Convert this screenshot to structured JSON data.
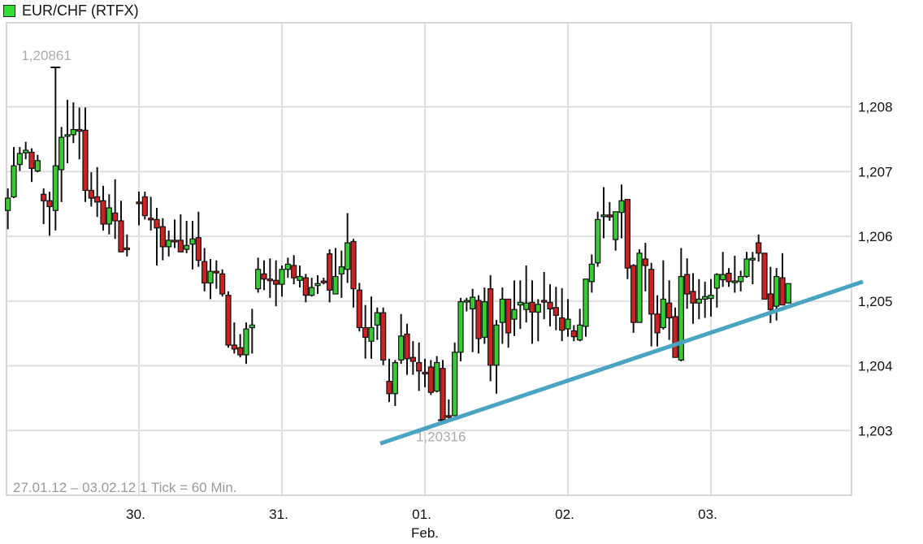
{
  "chart_data": {
    "type": "candlestick",
    "title": "EUR/CHF (RTFX)",
    "legend": {
      "label": "EUR/CHF (RTFX)",
      "color": "#33dd33",
      "placement": "top-left"
    },
    "footer": "27.01.12 – 03.02.12   1 Tick = 60 Min.",
    "colors": {
      "up": "#33cc33",
      "down": "#cc2222",
      "wick": "#111111",
      "grid": "#dddddd",
      "trendline": "#4aa3c0"
    },
    "grid": true,
    "ylim": [
      1.202,
      1.2093
    ],
    "y_ticks": [
      "1,203",
      "1,204",
      "1,205",
      "1,206",
      "1,207",
      "1,208"
    ],
    "y_tick_values": [
      1.203,
      1.204,
      1.205,
      1.206,
      1.207,
      1.208
    ],
    "x_ticks": [
      {
        "label": "30.",
        "sub": "",
        "time": "30.01 00:00"
      },
      {
        "label": "31.",
        "sub": "",
        "time": "31.01 00:00"
      },
      {
        "label": "01.",
        "sub": "Feb.",
        "time": "01.02 00:00"
      },
      {
        "label": "02.",
        "sub": "",
        "time": "02.02 00:00"
      },
      {
        "label": "03.",
        "sub": "",
        "time": "03.02 00:00"
      }
    ],
    "annotations": [
      {
        "text": "1,20861",
        "time": "27.01 10:00",
        "price": 1.20861,
        "kind": "high"
      },
      {
        "text": "1,20316",
        "time": "01.02 03:00",
        "price": 1.20316,
        "kind": "low"
      }
    ],
    "trendline": {
      "start": {
        "time": "31.01 16:30",
        "price": 1.2028
      },
      "end": {
        "time": "04.02 01:30",
        "price": 1.2053
      }
    },
    "candle_fields": [
      "time",
      "open",
      "high",
      "low",
      "close"
    ],
    "candles": [
      [
        "27.01 02:00",
        1.2064,
        1.20674,
        1.20611,
        1.20659
      ],
      [
        "27.01 03:00",
        1.20661,
        1.20738,
        1.20659,
        1.20709
      ],
      [
        "27.01 04:00",
        1.20711,
        1.20738,
        1.20701,
        1.20728
      ],
      [
        "27.01 05:00",
        1.20729,
        1.20746,
        1.20719,
        1.20733
      ],
      [
        "27.01 06:00",
        1.2073,
        1.20736,
        1.20684,
        1.20705
      ],
      [
        "27.01 07:00",
        1.20701,
        1.20726,
        1.20699,
        1.20717
      ],
      [
        "27.01 08:00",
        1.20665,
        1.20674,
        1.20619,
        1.20655
      ],
      [
        "27.01 09:00",
        1.20655,
        1.20669,
        1.20601,
        1.20646
      ],
      [
        "27.01 10:00",
        1.2064,
        1.20861,
        1.20609,
        1.20709
      ],
      [
        "27.01 11:00",
        1.20703,
        1.20769,
        1.20653,
        1.20753
      ],
      [
        "27.01 12:00",
        1.20755,
        1.20811,
        1.20713,
        1.20757
      ],
      [
        "27.01 13:00",
        1.20757,
        1.20807,
        1.20744,
        1.20765
      ],
      [
        "27.01 14:00",
        1.20765,
        1.20799,
        1.20719,
        1.20764
      ],
      [
        "27.01 15:00",
        1.20764,
        1.20799,
        1.20653,
        1.20671
      ],
      [
        "27.01 16:00",
        1.20671,
        1.20699,
        1.20646,
        1.20659
      ],
      [
        "27.01 17:00",
        1.20661,
        1.20707,
        1.2063,
        1.20653
      ],
      [
        "27.01 18:00",
        1.20655,
        1.20678,
        1.20609,
        1.20619
      ],
      [
        "27.01 19:00",
        1.20619,
        1.20665,
        1.20603,
        1.20644
      ],
      [
        "27.01 20:00",
        1.20636,
        1.20688,
        1.20596,
        1.20624
      ],
      [
        "27.01 21:00",
        1.20624,
        1.20655,
        1.20576,
        1.20576
      ],
      [
        "27.01 22:00",
        1.20582,
        1.20603,
        1.20569,
        1.20581
      ],
      [
        "30.01 00:00",
        1.20653,
        1.20669,
        1.20617,
        1.20652
      ],
      [
        "30.01 01:00",
        1.20661,
        1.20669,
        1.20626,
        1.20632
      ],
      [
        "30.01 02:00",
        1.20628,
        1.20661,
        1.20609,
        1.20627
      ],
      [
        "30.01 03:00",
        1.20626,
        1.20644,
        1.20555,
        1.20613
      ],
      [
        "30.01 04:00",
        1.20615,
        1.20628,
        1.20563,
        1.20584
      ],
      [
        "30.01 05:00",
        1.20584,
        1.20609,
        1.20569,
        1.20594
      ],
      [
        "30.01 06:00",
        1.20594,
        1.20626,
        1.20582,
        1.20593
      ],
      [
        "30.01 07:00",
        1.20594,
        1.20634,
        1.20576,
        1.20576
      ],
      [
        "30.01 08:00",
        1.2058,
        1.20624,
        1.20574,
        1.20586
      ],
      [
        "30.01 09:00",
        1.20588,
        1.20624,
        1.20549,
        1.20596
      ],
      [
        "30.01 10:00",
        1.20598,
        1.20638,
        1.20553,
        1.20563
      ],
      [
        "30.01 11:00",
        1.20561,
        1.20582,
        1.20515,
        1.20528
      ],
      [
        "30.01 12:00",
        1.20528,
        1.20565,
        1.20503,
        1.20546
      ],
      [
        "30.01 13:00",
        1.20546,
        1.20563,
        1.20519,
        1.20545
      ],
      [
        "30.01 14:00",
        1.20542,
        1.20549,
        1.20507,
        1.20511
      ],
      [
        "30.01 15:00",
        1.20509,
        1.20515,
        1.20428,
        1.20432
      ],
      [
        "30.01 16:00",
        1.20432,
        1.20467,
        1.20419,
        1.20426
      ],
      [
        "30.01 17:00",
        1.20428,
        1.20449,
        1.20413,
        1.20417
      ],
      [
        "30.01 18:00",
        1.20417,
        1.20467,
        1.20403,
        1.20457
      ],
      [
        "30.01 19:00",
        1.20459,
        1.20488,
        1.20419,
        1.20463
      ],
      [
        "30.01 20:00",
        1.20519,
        1.20567,
        1.20513,
        1.20549
      ],
      [
        "30.01 21:00",
        1.20542,
        1.20563,
        1.20517,
        1.20534
      ],
      [
        "30.01 22:00",
        1.20534,
        1.20566,
        1.20505,
        1.20533
      ],
      [
        "30.01 23:00",
        1.20532,
        1.20563,
        1.20492,
        1.20526
      ],
      [
        "31.01 00:00",
        1.20526,
        1.20555,
        1.20507,
        1.20549
      ],
      [
        "31.01 01:00",
        1.20549,
        1.20567,
        1.20536,
        1.20557
      ],
      [
        "31.01 02:00",
        1.20555,
        1.20571,
        1.20526,
        1.20536
      ],
      [
        "31.01 03:00",
        1.20532,
        1.20555,
        1.20521,
        1.20538
      ],
      [
        "31.01 04:00",
        1.20536,
        1.20542,
        1.20498,
        1.20509
      ],
      [
        "31.01 05:00",
        1.20509,
        1.20536,
        1.20507,
        1.20521
      ],
      [
        "31.01 06:00",
        1.20524,
        1.2054,
        1.20511,
        1.20527
      ],
      [
        "31.01 07:00",
        1.20531,
        1.20536,
        1.20526,
        1.2053
      ],
      [
        "31.01 08:00",
        1.20573,
        1.2058,
        1.20498,
        1.20517
      ],
      [
        "31.01 09:00",
        1.20511,
        1.20582,
        1.20511,
        1.20538
      ],
      [
        "31.01 10:00",
        1.20542,
        1.20578,
        1.20505,
        1.20553
      ],
      [
        "31.01 11:00",
        1.20549,
        1.20636,
        1.20528,
        1.2059
      ],
      [
        "31.01 12:00",
        1.20592,
        1.20596,
        1.2049,
        1.20519
      ],
      [
        "31.01 13:00",
        1.20517,
        1.20528,
        1.20453,
        1.20459
      ],
      [
        "31.01 14:00",
        1.20459,
        1.20494,
        1.20411,
        1.20444
      ],
      [
        "31.01 15:00",
        1.20438,
        1.20507,
        1.20411,
        1.20459
      ],
      [
        "31.01 16:00",
        1.20463,
        1.2049,
        1.2044,
        1.20482
      ],
      [
        "31.01 17:00",
        1.20482,
        1.2049,
        1.20401,
        1.20409
      ],
      [
        "31.01 18:00",
        1.20376,
        1.20411,
        1.20344,
        1.20357
      ],
      [
        "31.01 19:00",
        1.20357,
        1.20409,
        1.20338,
        1.20405
      ],
      [
        "31.01 20:00",
        1.20409,
        1.2048,
        1.20403,
        1.20446
      ],
      [
        "31.01 21:00",
        1.20449,
        1.20465,
        1.20386,
        1.20411
      ],
      [
        "31.01 22:00",
        1.20413,
        1.20438,
        1.20386,
        1.20407
      ],
      [
        "31.01 23:00",
        1.20405,
        1.20436,
        1.20361,
        1.20392
      ],
      [
        "01.02 00:00",
        1.2039,
        1.20411,
        1.20367,
        1.20389
      ],
      [
        "01.02 01:00",
        1.20398,
        1.20409,
        1.20355,
        1.20359
      ],
      [
        "01.02 02:00",
        1.20361,
        1.20415,
        1.20359,
        1.20405
      ],
      [
        "01.02 03:00",
        1.20396,
        1.20409,
        1.20316,
        1.20317
      ],
      [
        "01.02 04:00",
        1.20323,
        1.20348,
        1.20315,
        1.20322
      ],
      [
        "01.02 05:00",
        1.20323,
        1.20436,
        1.20323,
        1.20421
      ],
      [
        "01.02 06:00",
        1.20421,
        1.20505,
        1.20407,
        1.20499
      ],
      [
        "01.02 07:00",
        1.205,
        1.20505,
        1.20484,
        1.20501
      ],
      [
        "01.02 08:00",
        1.20488,
        1.20519,
        1.20421,
        1.20506
      ],
      [
        "01.02 09:00",
        1.20501,
        1.20509,
        1.20419,
        1.20442
      ],
      [
        "01.02 10:00",
        1.20444,
        1.20521,
        1.20434,
        1.20499
      ],
      [
        "01.02 11:00",
        1.20519,
        1.2054,
        1.20376,
        1.20401
      ],
      [
        "01.02 12:00",
        1.20401,
        1.20471,
        1.20357,
        1.20463
      ],
      [
        "01.02 13:00",
        1.20467,
        1.20521,
        1.20434,
        1.20503
      ],
      [
        "01.02 14:00",
        1.20503,
        1.20503,
        1.20428,
        1.20451
      ],
      [
        "01.02 15:00",
        1.20472,
        1.20532,
        1.20446,
        1.20487
      ],
      [
        "01.02 16:00",
        1.20494,
        1.20532,
        1.20457,
        1.20498
      ],
      [
        "01.02 17:00",
        1.20487,
        1.20555,
        1.20467,
        1.20497
      ],
      [
        "01.02 18:00",
        1.20498,
        1.20532,
        1.20434,
        1.20483
      ],
      [
        "01.02 19:00",
        1.20483,
        1.20503,
        1.20438,
        1.20495
      ],
      [
        "01.02 20:00",
        1.20501,
        1.20545,
        1.20472,
        1.205
      ],
      [
        "01.02 21:00",
        1.20498,
        1.20526,
        1.20461,
        1.20488
      ],
      [
        "01.02 22:00",
        1.2049,
        1.20522,
        1.20455,
        1.20478
      ],
      [
        "01.02 23:00",
        1.20474,
        1.2052,
        1.20438,
        1.20455
      ],
      [
        "02.02 00:00",
        1.20457,
        1.20503,
        1.20445,
        1.20472
      ],
      [
        "02.02 01:00",
        1.20454,
        1.20463,
        1.20438,
        1.20445
      ],
      [
        "02.02 02:00",
        1.2044,
        1.20488,
        1.20438,
        1.20463
      ],
      [
        "02.02 03:00",
        1.20461,
        1.20534,
        1.20445,
        1.20534
      ],
      [
        "02.02 04:00",
        1.2053,
        1.20572,
        1.20513,
        1.20557
      ],
      [
        "02.02 05:00",
        1.20559,
        1.20638,
        1.20553,
        1.20626
      ],
      [
        "02.02 06:00",
        1.20632,
        1.20676,
        1.20597,
        1.20633
      ],
      [
        "02.02 07:00",
        1.20633,
        1.20653,
        1.20624,
        1.2063
      ],
      [
        "02.02 08:00",
        1.20595,
        1.20638,
        1.20578,
        1.20638
      ],
      [
        "02.02 09:00",
        1.20637,
        1.2068,
        1.20597,
        1.20655
      ],
      [
        "02.02 10:00",
        1.20657,
        1.20657,
        1.20534,
        1.20551
      ],
      [
        "02.02 11:00",
        1.20555,
        1.20557,
        1.20451,
        1.20467
      ],
      [
        "02.02 12:00",
        1.20467,
        1.2058,
        1.20467,
        1.20574
      ],
      [
        "02.02 13:00",
        1.20565,
        1.2059,
        1.20515,
        1.20555
      ],
      [
        "02.02 14:00",
        1.20549,
        1.20559,
        1.2043,
        1.2048
      ],
      [
        "02.02 15:00",
        1.2048,
        1.20509,
        1.2043,
        1.20451
      ],
      [
        "02.02 16:00",
        1.20459,
        1.20563,
        1.20456,
        1.20503
      ],
      [
        "02.02 17:00",
        1.20497,
        1.20532,
        1.2044,
        1.20474
      ],
      [
        "02.02 18:00",
        1.20476,
        1.2049,
        1.20413,
        1.20413
      ],
      [
        "02.02 19:00",
        1.20409,
        1.20582,
        1.20407,
        1.20538
      ],
      [
        "02.02 20:00",
        1.20541,
        1.20566,
        1.20488,
        1.20511
      ],
      [
        "02.02 21:00",
        1.20515,
        1.20543,
        1.20465,
        1.20497
      ],
      [
        "02.02 22:00",
        1.20497,
        1.20534,
        1.20472,
        1.20503
      ],
      [
        "02.02 23:00",
        1.20503,
        1.2053,
        1.20474,
        1.20507
      ],
      [
        "03.02 00:00",
        1.20504,
        1.20534,
        1.20476,
        1.20509
      ],
      [
        "03.02 01:00",
        1.2052,
        1.20543,
        1.2049,
        1.20541
      ],
      [
        "03.02 02:00",
        1.20533,
        1.20576,
        1.20522,
        1.20541
      ],
      [
        "03.02 03:00",
        1.20543,
        1.20551,
        1.20522,
        1.2053
      ],
      [
        "03.02 04:00",
        1.2053,
        1.2057,
        1.20513,
        1.20531
      ],
      [
        "03.02 05:00",
        1.2053,
        1.20547,
        1.20515,
        1.20538
      ],
      [
        "03.02 06:00",
        1.20538,
        1.20576,
        1.20536,
        1.20565
      ],
      [
        "03.02 07:00",
        1.20565,
        1.20576,
        1.20526,
        1.20566
      ],
      [
        "03.02 08:00",
        1.2059,
        1.20603,
        1.20561,
        1.20574
      ],
      [
        "03.02 09:00",
        1.20574,
        1.20574,
        1.20503,
        1.20503
      ],
      [
        "03.02 10:00",
        1.20511,
        1.20553,
        1.20466,
        1.20487
      ],
      [
        "03.02 11:00",
        1.20492,
        1.20551,
        1.2047,
        1.20538
      ],
      [
        "03.02 12:00",
        1.20536,
        1.20574,
        1.20494,
        1.20494
      ],
      [
        "03.02 13:00",
        1.20497,
        1.20527,
        1.20497,
        1.20527
      ]
    ]
  }
}
